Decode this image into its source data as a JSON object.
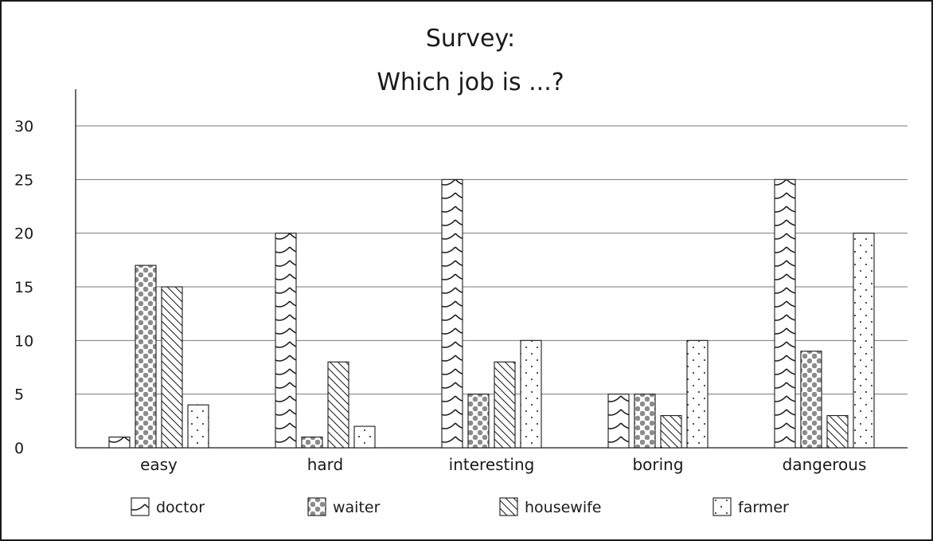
{
  "chart_data": {
    "type": "bar",
    "title_lines": [
      "Survey:",
      "Which job is ...?"
    ],
    "categories": [
      "easy",
      "hard",
      "interesting",
      "boring",
      "dangerous"
    ],
    "series": [
      {
        "name": "doctor",
        "values": [
          1,
          20,
          25,
          5,
          25
        ]
      },
      {
        "name": "waiter",
        "values": [
          17,
          1,
          5,
          5,
          9
        ]
      },
      {
        "name": "housewife",
        "values": [
          15,
          8,
          8,
          3,
          3
        ]
      },
      {
        "name": "farmer",
        "values": [
          4,
          2,
          10,
          10,
          20
        ]
      }
    ],
    "yticks": [
      0,
      5,
      10,
      15,
      20,
      25,
      30
    ],
    "ylim": [
      0,
      30
    ],
    "grid": true,
    "legend_position": "bottom",
    "patterns": {
      "doctor": "wave",
      "waiter": "dots",
      "housewife": "diagonal",
      "farmer": "sparse-dots"
    },
    "colors": {
      "ink": "#1a1a1a",
      "grid": "#7a7a7a",
      "dots": "#8c8c8c"
    }
  }
}
